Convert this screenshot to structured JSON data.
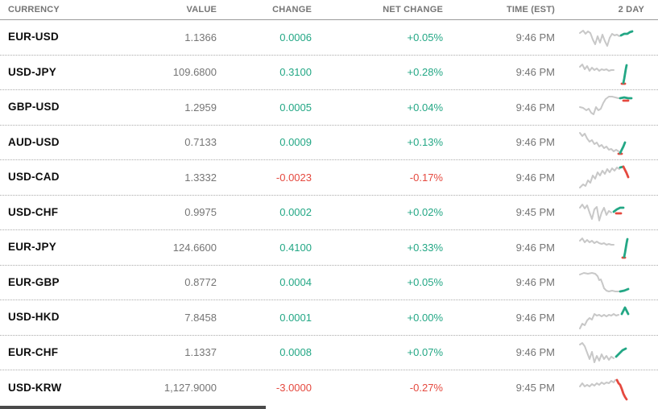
{
  "colors": {
    "positive": "#23a785",
    "negative": "#e5493f",
    "spark_gray": "#c8c8c8"
  },
  "table": {
    "columns": [
      "CURRENCY",
      "VALUE",
      "CHANGE",
      "NET CHANGE",
      "TIME (EST)",
      "2 DAY"
    ]
  },
  "rows": [
    {
      "pair": "EUR-USD",
      "value": "1.1366",
      "change": "0.0006",
      "net_change": "+0.05%",
      "time": "9:46 PM",
      "direction": "up",
      "spark": [
        {
          "c": "gray",
          "pts": [
            [
              2,
              12
            ],
            [
              6,
              9
            ],
            [
              9,
              13
            ],
            [
              12,
              10
            ],
            [
              15,
              12
            ],
            [
              18,
              20
            ],
            [
              21,
              26
            ],
            [
              24,
              16
            ],
            [
              27,
              24
            ],
            [
              30,
              14
            ],
            [
              33,
              22
            ],
            [
              36,
              28
            ],
            [
              39,
              18
            ],
            [
              42,
              13
            ],
            [
              45,
              15
            ],
            [
              48,
              14
            ],
            [
              51,
              16
            ]
          ]
        },
        {
          "c": "up",
          "pts": [
            [
              53,
              15
            ],
            [
              57,
              13
            ],
            [
              61,
              13
            ],
            [
              64,
              11
            ],
            [
              67,
              10
            ]
          ]
        }
      ]
    },
    {
      "pair": "USD-JPY",
      "value": "109.6800",
      "change": "0.3100",
      "net_change": "+0.28%",
      "time": "9:46 PM",
      "direction": "up",
      "spark": [
        {
          "c": "gray",
          "pts": [
            [
              2,
              10
            ],
            [
              5,
              7
            ],
            [
              8,
              13
            ],
            [
              11,
              9
            ],
            [
              14,
              15
            ],
            [
              17,
              11
            ],
            [
              20,
              14
            ],
            [
              23,
              12
            ],
            [
              26,
              15
            ],
            [
              29,
              13
            ],
            [
              32,
              14
            ],
            [
              35,
              13
            ],
            [
              38,
              15
            ],
            [
              41,
              14
            ],
            [
              44,
              14
            ]
          ]
        },
        {
          "c": "down",
          "pts": [
            [
              54,
              31
            ],
            [
              58,
              31
            ]
          ]
        },
        {
          "c": "up",
          "pts": [
            [
              56,
              30
            ],
            [
              57,
              25
            ],
            [
              58,
              19
            ],
            [
              59,
              13
            ],
            [
              60,
              8
            ]
          ]
        }
      ]
    },
    {
      "pair": "GBP-USD",
      "value": "1.2959",
      "change": "0.0005",
      "net_change": "+0.04%",
      "time": "9:46 PM",
      "direction": "up",
      "spark": [
        {
          "c": "gray",
          "pts": [
            [
              2,
              17
            ],
            [
              6,
              18
            ],
            [
              10,
              21
            ],
            [
              13,
              19
            ],
            [
              16,
              24
            ],
            [
              19,
              26
            ],
            [
              22,
              17
            ],
            [
              25,
              21
            ],
            [
              28,
              19
            ],
            [
              31,
              12
            ],
            [
              34,
              7
            ],
            [
              38,
              4
            ],
            [
              42,
              4
            ],
            [
              46,
              5
            ],
            [
              50,
              6
            ]
          ]
        },
        {
          "c": "down",
          "pts": [
            [
              56,
              9
            ],
            [
              62,
              9
            ]
          ]
        },
        {
          "c": "up",
          "pts": [
            [
              52,
              6
            ],
            [
              57,
              5
            ],
            [
              62,
              6
            ],
            [
              66,
              6
            ]
          ]
        }
      ]
    },
    {
      "pair": "AUD-USD",
      "value": "0.7133",
      "change": "0.0009",
      "net_change": "+0.13%",
      "time": "9:46 PM",
      "direction": "up",
      "spark": [
        {
          "c": "gray",
          "pts": [
            [
              2,
              5
            ],
            [
              5,
              9
            ],
            [
              8,
              6
            ],
            [
              11,
              12
            ],
            [
              14,
              16
            ],
            [
              17,
              14
            ],
            [
              20,
              19
            ],
            [
              23,
              17
            ],
            [
              26,
              22
            ],
            [
              29,
              20
            ],
            [
              32,
              24
            ],
            [
              35,
              22
            ],
            [
              38,
              26
            ],
            [
              41,
              25
            ],
            [
              44,
              28
            ],
            [
              47,
              26
            ],
            [
              50,
              28
            ]
          ]
        },
        {
          "c": "down",
          "pts": [
            [
              50,
              31
            ],
            [
              54,
              31
            ]
          ]
        },
        {
          "c": "up",
          "pts": [
            [
              52,
              30
            ],
            [
              54,
              26
            ],
            [
              56,
              22
            ],
            [
              58,
              17
            ]
          ]
        }
      ]
    },
    {
      "pair": "USD-CAD",
      "value": "1.3332",
      "change": "-0.0023",
      "net_change": "-0.17%",
      "time": "9:46 PM",
      "direction": "down",
      "spark": [
        {
          "c": "gray",
          "pts": [
            [
              2,
              30
            ],
            [
              6,
              26
            ],
            [
              9,
              28
            ],
            [
              12,
              21
            ],
            [
              15,
              24
            ],
            [
              18,
              15
            ],
            [
              21,
              19
            ],
            [
              24,
              11
            ],
            [
              27,
              15
            ],
            [
              30,
              9
            ],
            [
              33,
              13
            ],
            [
              36,
              7
            ],
            [
              39,
              11
            ],
            [
              42,
              6
            ],
            [
              45,
              9
            ],
            [
              48,
              5
            ],
            [
              51,
              7
            ]
          ]
        },
        {
          "c": "up",
          "pts": [
            [
              52,
              5
            ],
            [
              56,
              4
            ]
          ]
        },
        {
          "c": "down",
          "pts": [
            [
              56,
              4
            ],
            [
              58,
              8
            ],
            [
              60,
              12
            ],
            [
              62,
              17
            ]
          ]
        }
      ]
    },
    {
      "pair": "USD-CHF",
      "value": "0.9975",
      "change": "0.0002",
      "net_change": "+0.02%",
      "time": "9:45 PM",
      "direction": "up",
      "spark": [
        {
          "c": "gray",
          "pts": [
            [
              2,
              11
            ],
            [
              5,
              7
            ],
            [
              8,
              12
            ],
            [
              11,
              8
            ],
            [
              14,
              17
            ],
            [
              17,
              25
            ],
            [
              20,
              13
            ],
            [
              23,
              10
            ],
            [
              26,
              27
            ],
            [
              29,
              17
            ],
            [
              32,
              11
            ],
            [
              35,
              20
            ],
            [
              38,
              15
            ],
            [
              41,
              17
            ]
          ]
        },
        {
          "c": "down",
          "pts": [
            [
              47,
              18
            ],
            [
              53,
              18
            ]
          ]
        },
        {
          "c": "up",
          "pts": [
            [
              44,
              16
            ],
            [
              48,
              13
            ],
            [
              52,
              11
            ],
            [
              56,
              11
            ]
          ]
        }
      ]
    },
    {
      "pair": "EUR-JPY",
      "value": "124.6600",
      "change": "0.4100",
      "net_change": "+0.33%",
      "time": "9:46 PM",
      "direction": "up",
      "spark": [
        {
          "c": "gray",
          "pts": [
            [
              2,
              9
            ],
            [
              5,
              6
            ],
            [
              8,
              11
            ],
            [
              11,
              8
            ],
            [
              14,
              11
            ],
            [
              17,
              9
            ],
            [
              20,
              12
            ],
            [
              23,
              10
            ],
            [
              26,
              12
            ],
            [
              29,
              13
            ],
            [
              32,
              12
            ],
            [
              35,
              14
            ],
            [
              38,
              13
            ],
            [
              41,
              14
            ],
            [
              44,
              14
            ]
          ]
        },
        {
          "c": "down",
          "pts": [
            [
              55,
              30
            ],
            [
              58,
              30
            ]
          ]
        },
        {
          "c": "up",
          "pts": [
            [
              57,
              29
            ],
            [
              58,
              24
            ],
            [
              59,
              18
            ],
            [
              60,
              12
            ],
            [
              61,
              7
            ]
          ]
        }
      ]
    },
    {
      "pair": "EUR-GBP",
      "value": "0.8772",
      "change": "0.0004",
      "net_change": "+0.05%",
      "time": "9:46 PM",
      "direction": "up",
      "spark": [
        {
          "c": "gray",
          "pts": [
            [
              2,
              7
            ],
            [
              7,
              5
            ],
            [
              12,
              6
            ],
            [
              17,
              5
            ],
            [
              21,
              6
            ],
            [
              24,
              9
            ],
            [
              26,
              14
            ],
            [
              28,
              13
            ],
            [
              30,
              18
            ],
            [
              32,
              24
            ],
            [
              35,
              27
            ],
            [
              38,
              28
            ],
            [
              42,
              27
            ],
            [
              46,
              28
            ],
            [
              50,
              28
            ]
          ]
        },
        {
          "c": "up",
          "pts": [
            [
              52,
              28
            ],
            [
              57,
              27
            ],
            [
              62,
              25
            ]
          ]
        }
      ]
    },
    {
      "pair": "USD-HKD",
      "value": "7.8458",
      "change": "0.0001",
      "net_change": "+0.00%",
      "time": "9:46 PM",
      "direction": "up",
      "spark": [
        {
          "c": "gray",
          "pts": [
            [
              2,
              31
            ],
            [
              5,
              25
            ],
            [
              8,
              27
            ],
            [
              11,
              21
            ],
            [
              14,
              18
            ],
            [
              17,
              20
            ],
            [
              20,
              13
            ],
            [
              23,
              15
            ],
            [
              26,
              14
            ],
            [
              29,
              16
            ],
            [
              32,
              14
            ],
            [
              35,
              16
            ],
            [
              38,
              14
            ],
            [
              41,
              15
            ],
            [
              44,
              13
            ],
            [
              47,
              15
            ],
            [
              50,
              14
            ]
          ]
        },
        {
          "c": "up",
          "pts": [
            [
              54,
              13
            ],
            [
              58,
              5
            ],
            [
              62,
              13
            ]
          ]
        }
      ]
    },
    {
      "pair": "EUR-CHF",
      "value": "1.1337",
      "change": "0.0008",
      "net_change": "+0.07%",
      "time": "9:46 PM",
      "direction": "up",
      "spark": [
        {
          "c": "gray",
          "pts": [
            [
              2,
              7
            ],
            [
              5,
              5
            ],
            [
              8,
              9
            ],
            [
              11,
              17
            ],
            [
              14,
              25
            ],
            [
              17,
              16
            ],
            [
              20,
              29
            ],
            [
              23,
              21
            ],
            [
              26,
              27
            ],
            [
              29,
              19
            ],
            [
              32,
              25
            ],
            [
              35,
              21
            ],
            [
              38,
              26
            ],
            [
              41,
              22
            ],
            [
              44,
              24
            ]
          ]
        },
        {
          "c": "up",
          "pts": [
            [
              47,
              22
            ],
            [
              51,
              18
            ],
            [
              55,
              14
            ],
            [
              59,
              12
            ]
          ]
        }
      ]
    },
    {
      "pair": "USD-KRW",
      "value": "1,127.9000",
      "change": "-3.0000",
      "net_change": "-0.27%",
      "time": "9:45 PM",
      "direction": "down",
      "spark": [
        {
          "c": "gray",
          "pts": [
            [
              2,
              15
            ],
            [
              5,
              11
            ],
            [
              8,
              15
            ],
            [
              11,
              13
            ],
            [
              14,
              15
            ],
            [
              17,
              12
            ],
            [
              20,
              14
            ],
            [
              23,
              11
            ],
            [
              26,
              13
            ],
            [
              29,
              10
            ],
            [
              32,
              12
            ],
            [
              35,
              10
            ],
            [
              38,
              11
            ],
            [
              41,
              8
            ],
            [
              44,
              10
            ],
            [
              46,
              7
            ]
          ]
        },
        {
          "c": "down",
          "pts": [
            [
              48,
              7
            ],
            [
              50,
              11
            ],
            [
              52,
              13
            ],
            [
              54,
              18
            ],
            [
              56,
              24
            ],
            [
              58,
              28
            ],
            [
              60,
              31
            ]
          ]
        }
      ]
    }
  ]
}
